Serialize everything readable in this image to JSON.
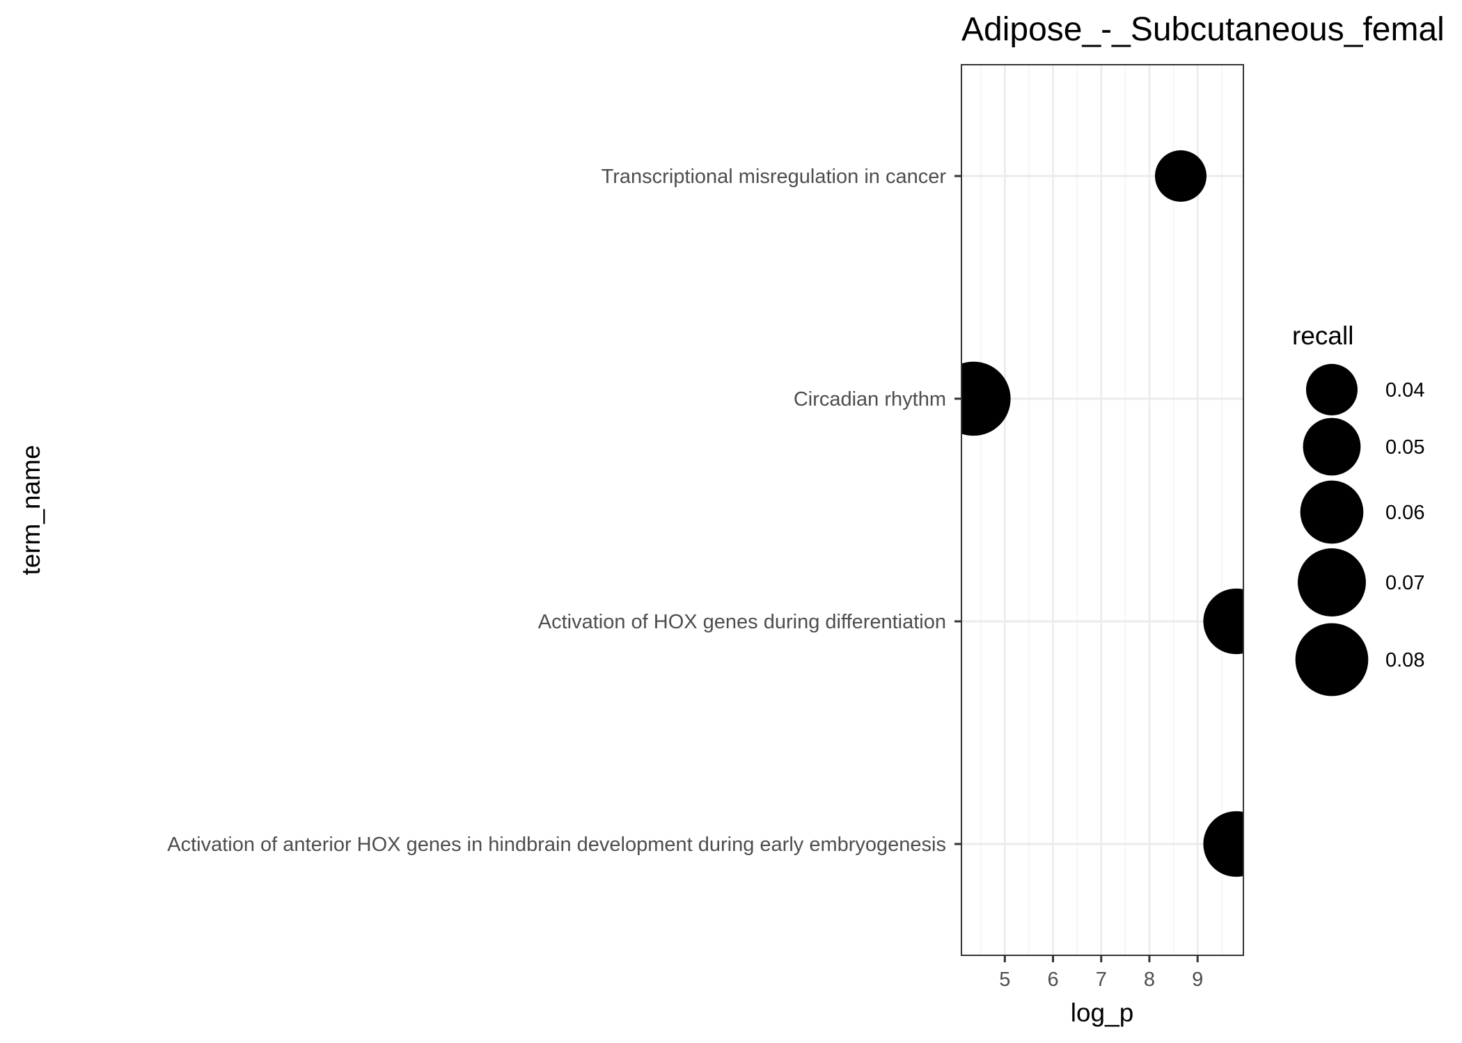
{
  "chart_data": {
    "type": "scatter",
    "title": "Adipose_-_Subcutaneous_femal",
    "xlabel": "log_p",
    "ylabel": "term_name",
    "xlim": [
      4.1,
      9.95
    ],
    "x_ticks": [
      5,
      6,
      7,
      8,
      9
    ],
    "grid": true,
    "categories": [
      "Transcriptional misregulation in cancer",
      "Circadian rhythm",
      "Activation of HOX genes during differentiation",
      "Activation of anterior HOX genes in hindbrain development during early embryogenesis"
    ],
    "points": [
      {
        "term": "Transcriptional misregulation in cancer",
        "log_p": 8.65,
        "recall": 0.04
      },
      {
        "term": "Circadian rhythm",
        "log_p": 4.35,
        "recall": 0.083
      },
      {
        "term": "Activation of HOX genes during differentiation",
        "log_p": 9.8,
        "recall": 0.065
      },
      {
        "term": "Activation of anterior HOX genes in hindbrain development during early embryogenesis",
        "log_p": 9.8,
        "recall": 0.065
      }
    ],
    "point_color": "#000000",
    "legend": {
      "title": "recall",
      "position": "right",
      "entries": [
        {
          "label": "0.04",
          "value": 0.04
        },
        {
          "label": "0.05",
          "value": 0.05
        },
        {
          "label": "0.06",
          "value": 0.06
        },
        {
          "label": "0.07",
          "value": 0.07
        },
        {
          "label": "0.08",
          "value": 0.08
        }
      ]
    }
  }
}
